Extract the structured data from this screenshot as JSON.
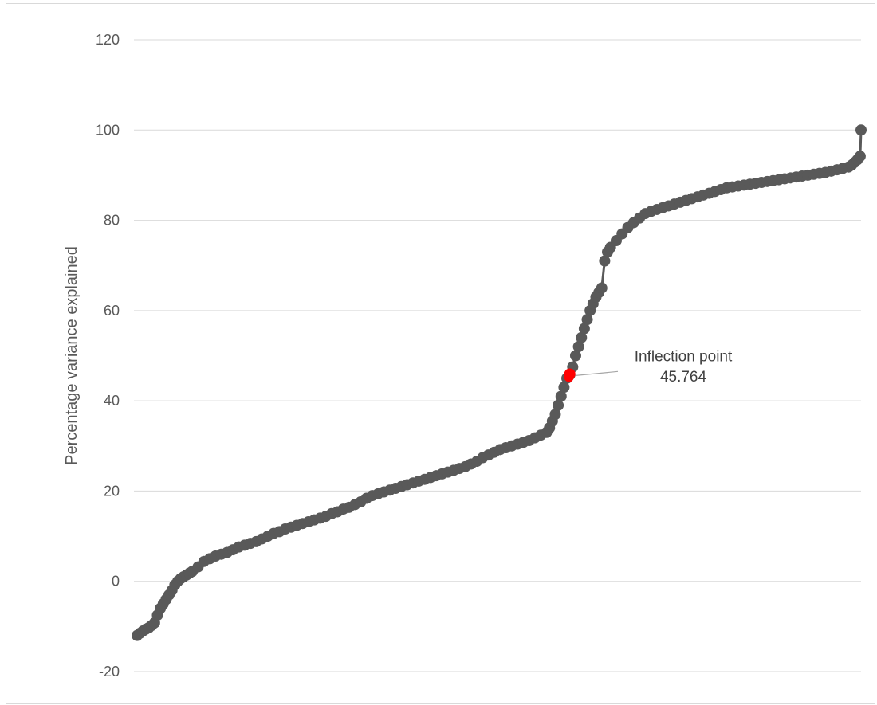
{
  "chart_data": {
    "type": "line",
    "title": "",
    "xlabel": "",
    "ylabel": "Percentage variance explained",
    "ylim": [
      -20,
      120
    ],
    "yticks": [
      -20,
      0,
      20,
      40,
      60,
      80,
      100,
      120
    ],
    "grid": "horizontal",
    "legend": "none",
    "x_ticks_shown": false,
    "series": [
      {
        "color": "#595959",
        "marker": "circle",
        "values": [
          [
            1,
            -12
          ],
          [
            2,
            -11.5
          ],
          [
            3,
            -11
          ],
          [
            4,
            -10.6
          ],
          [
            5,
            -10.3
          ],
          [
            6,
            -9.8
          ],
          [
            7,
            -9.2
          ],
          [
            8,
            -7.5
          ],
          [
            9,
            -6
          ],
          [
            10,
            -5
          ],
          [
            11,
            -4
          ],
          [
            12,
            -3
          ],
          [
            13,
            -2
          ],
          [
            14,
            -0.8
          ],
          [
            15,
            0
          ],
          [
            16,
            0.6
          ],
          [
            17,
            1
          ],
          [
            18,
            1.4
          ],
          [
            19,
            1.8
          ],
          [
            20,
            2.2
          ],
          [
            22,
            3.2
          ],
          [
            24,
            4.4
          ],
          [
            26,
            5
          ],
          [
            28,
            5.6
          ],
          [
            30,
            6
          ],
          [
            32,
            6.4
          ],
          [
            34,
            7
          ],
          [
            36,
            7.6
          ],
          [
            38,
            8
          ],
          [
            40,
            8.4
          ],
          [
            42,
            8.8
          ],
          [
            44,
            9.4
          ],
          [
            46,
            10
          ],
          [
            48,
            10.6
          ],
          [
            50,
            11
          ],
          [
            52,
            11.6
          ],
          [
            54,
            12
          ],
          [
            56,
            12.4
          ],
          [
            58,
            12.8
          ],
          [
            60,
            13.2
          ],
          [
            62,
            13.6
          ],
          [
            64,
            14
          ],
          [
            66,
            14.4
          ],
          [
            68,
            15
          ],
          [
            70,
            15.4
          ],
          [
            72,
            16
          ],
          [
            74,
            16.4
          ],
          [
            76,
            17
          ],
          [
            78,
            17.6
          ],
          [
            80,
            18.4
          ],
          [
            82,
            19
          ],
          [
            84,
            19.4
          ],
          [
            86,
            19.8
          ],
          [
            88,
            20.2
          ],
          [
            90,
            20.6
          ],
          [
            92,
            21
          ],
          [
            94,
            21.4
          ],
          [
            96,
            21.8
          ],
          [
            98,
            22.2
          ],
          [
            100,
            22.6
          ],
          [
            102,
            23
          ],
          [
            104,
            23.4
          ],
          [
            106,
            23.8
          ],
          [
            108,
            24.2
          ],
          [
            110,
            24.6
          ],
          [
            112,
            25
          ],
          [
            114,
            25.4
          ],
          [
            116,
            26
          ],
          [
            118,
            26.6
          ],
          [
            120,
            27.4
          ],
          [
            122,
            28
          ],
          [
            124,
            28.6
          ],
          [
            126,
            29.2
          ],
          [
            128,
            29.6
          ],
          [
            130,
            30
          ],
          [
            132,
            30.4
          ],
          [
            134,
            30.8
          ],
          [
            136,
            31.2
          ],
          [
            138,
            31.8
          ],
          [
            140,
            32.4
          ],
          [
            142,
            33
          ],
          [
            143,
            34
          ],
          [
            144,
            35.5
          ],
          [
            145,
            37
          ],
          [
            146,
            39
          ],
          [
            147,
            41
          ],
          [
            148,
            43
          ],
          [
            149,
            45
          ],
          [
            150,
            45.764
          ],
          [
            151,
            47.5
          ],
          [
            152,
            50
          ],
          [
            153,
            52
          ],
          [
            154,
            54
          ],
          [
            155,
            56
          ],
          [
            156,
            58
          ],
          [
            157,
            60
          ],
          [
            158,
            61.5
          ],
          [
            159,
            63
          ],
          [
            160,
            64
          ],
          [
            161,
            65
          ],
          [
            162,
            71
          ],
          [
            163,
            73
          ],
          [
            164,
            74
          ],
          [
            166,
            75.5
          ],
          [
            168,
            77
          ],
          [
            170,
            78.4
          ],
          [
            172,
            79.5
          ],
          [
            174,
            80.5
          ],
          [
            176,
            81.5
          ],
          [
            178,
            82
          ],
          [
            180,
            82.4
          ],
          [
            182,
            82.8
          ],
          [
            184,
            83.2
          ],
          [
            186,
            83.6
          ],
          [
            188,
            84
          ],
          [
            190,
            84.4
          ],
          [
            192,
            84.8
          ],
          [
            194,
            85.2
          ],
          [
            196,
            85.6
          ],
          [
            198,
            86
          ],
          [
            200,
            86.4
          ],
          [
            202,
            86.8
          ],
          [
            204,
            87.2
          ],
          [
            206,
            87.4
          ],
          [
            208,
            87.6
          ],
          [
            210,
            87.8
          ],
          [
            212,
            88
          ],
          [
            214,
            88.2
          ],
          [
            216,
            88.4
          ],
          [
            218,
            88.6
          ],
          [
            220,
            88.8
          ],
          [
            222,
            89
          ],
          [
            224,
            89.2
          ],
          [
            226,
            89.4
          ],
          [
            228,
            89.6
          ],
          [
            230,
            89.8
          ],
          [
            232,
            90
          ],
          [
            234,
            90.2
          ],
          [
            236,
            90.4
          ],
          [
            238,
            90.6
          ],
          [
            240,
            90.9
          ],
          [
            242,
            91.2
          ],
          [
            244,
            91.5
          ],
          [
            246,
            91.8
          ],
          [
            247,
            92.2
          ],
          [
            248,
            92.8
          ],
          [
            249,
            93.4
          ],
          [
            250,
            94.2
          ],
          [
            250.3,
            100
          ]
        ]
      }
    ],
    "highlight": {
      "x": 150,
      "y": 45.764,
      "color": "#ff0000",
      "label": "Inflection point",
      "value": "45.764"
    }
  }
}
